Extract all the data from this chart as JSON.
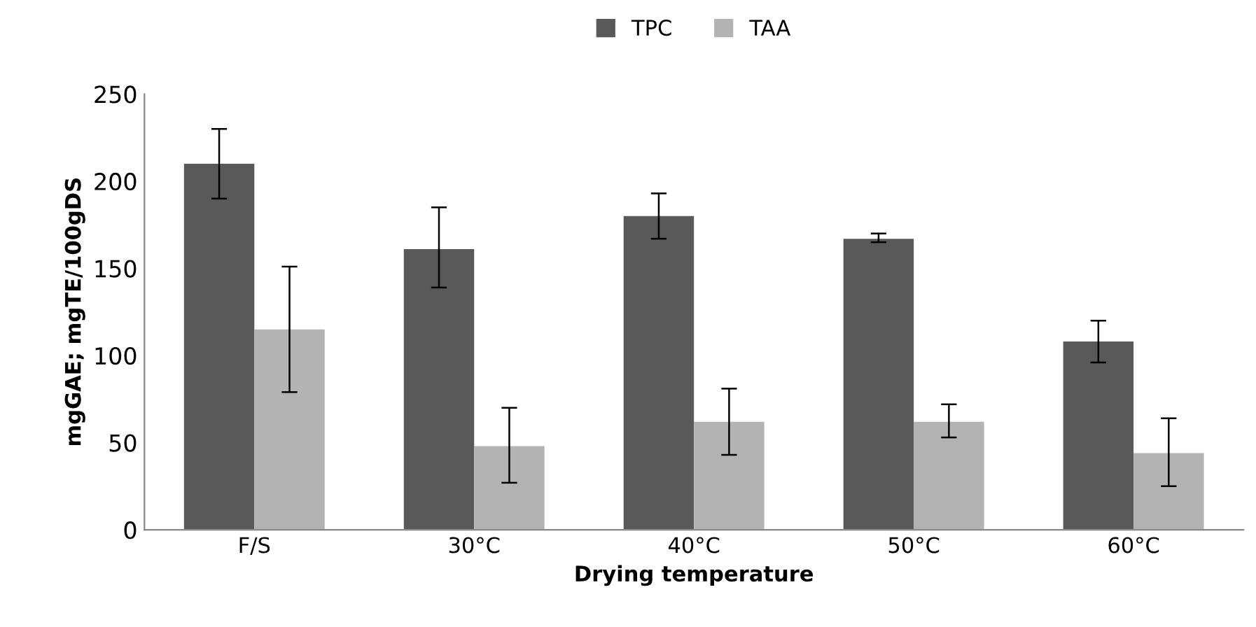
{
  "chart_data": {
    "type": "bar",
    "xlabel": "Drying temperature",
    "ylabel": "mgGAE; mgTE/100gDS",
    "categories": [
      "F/S",
      "30°C",
      "40°C",
      "50°C",
      "60°C"
    ],
    "series": [
      {
        "name": "TPC",
        "color": "#595959",
        "values": [
          210,
          161,
          180,
          167,
          108
        ],
        "errors": [
          [
            190,
            230
          ],
          [
            139,
            185
          ],
          [
            167,
            193
          ],
          [
            165,
            170
          ],
          [
            96,
            120
          ]
        ]
      },
      {
        "name": "TAA",
        "color": "#b3b3b3",
        "values": [
          115,
          48,
          62,
          62,
          44
        ],
        "errors": [
          [
            79,
            151
          ],
          [
            27,
            70
          ],
          [
            43,
            81
          ],
          [
            53,
            72
          ],
          [
            25,
            64
          ]
        ]
      }
    ],
    "ylim": [
      0,
      250
    ],
    "yticks": [
      0,
      50,
      100,
      150,
      200,
      250
    ],
    "grid": false,
    "legend": "top"
  }
}
